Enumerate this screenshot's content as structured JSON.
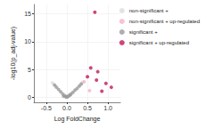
{
  "chart_data": {
    "type": "scatter",
    "x_label": "Log FoldChange",
    "y_label": "-log10(p_adj-value)",
    "xlim": [
      -0.8,
      1.3
    ],
    "ylim": [
      -0.9,
      16.7
    ],
    "xticks": [
      {
        "value": -0.5,
        "label": "-0.5"
      },
      {
        "value": 0,
        "label": "0.0"
      },
      {
        "value": 0.5,
        "label": "0.5"
      },
      {
        "value": 1,
        "label": "1.0"
      }
    ],
    "yticks": [
      0,
      5,
      10,
      15
    ],
    "grid": true,
    "legend": "right",
    "marker": "circle",
    "series": [
      {
        "name": "non-significant +",
        "color": "#dcdcdc",
        "x": [
          -0.35,
          -0.28,
          0.32,
          0.38
        ],
        "values": [
          2.6,
          2.1,
          2.2,
          2.7
        ]
      },
      {
        "name": "non-significant + up-regulated",
        "color": "#f2b5c9",
        "x": [
          0.42,
          0.55
        ],
        "values": [
          2.8,
          1.2
        ]
      },
      {
        "name": "significant +",
        "color": "#9a9a9a",
        "x": [
          -0.3,
          -0.25,
          -0.2,
          -0.15,
          -0.1,
          -0.05,
          0,
          0.05,
          0.1,
          0.15,
          0.2,
          0.25,
          0.3,
          0.35,
          -0.02,
          0.02,
          -0.08,
          0.08
        ],
        "values": [
          2.2,
          1.8,
          1.4,
          1.0,
          0.6,
          0.3,
          0.1,
          0.3,
          0.6,
          0.9,
          1.3,
          1.6,
          2.0,
          2.4,
          0.05,
          0.1,
          0.2,
          0.4
        ]
      },
      {
        "name": "significant + up-regulated",
        "color": "#c2185b",
        "x": [
          0.68,
          0.58,
          0.75,
          0.5,
          0.72,
          0.95,
          1.08,
          0.85
        ],
        "values": [
          15.3,
          5.3,
          4.6,
          3.7,
          3.1,
          2.5,
          1.8,
          1.1
        ]
      }
    ]
  }
}
